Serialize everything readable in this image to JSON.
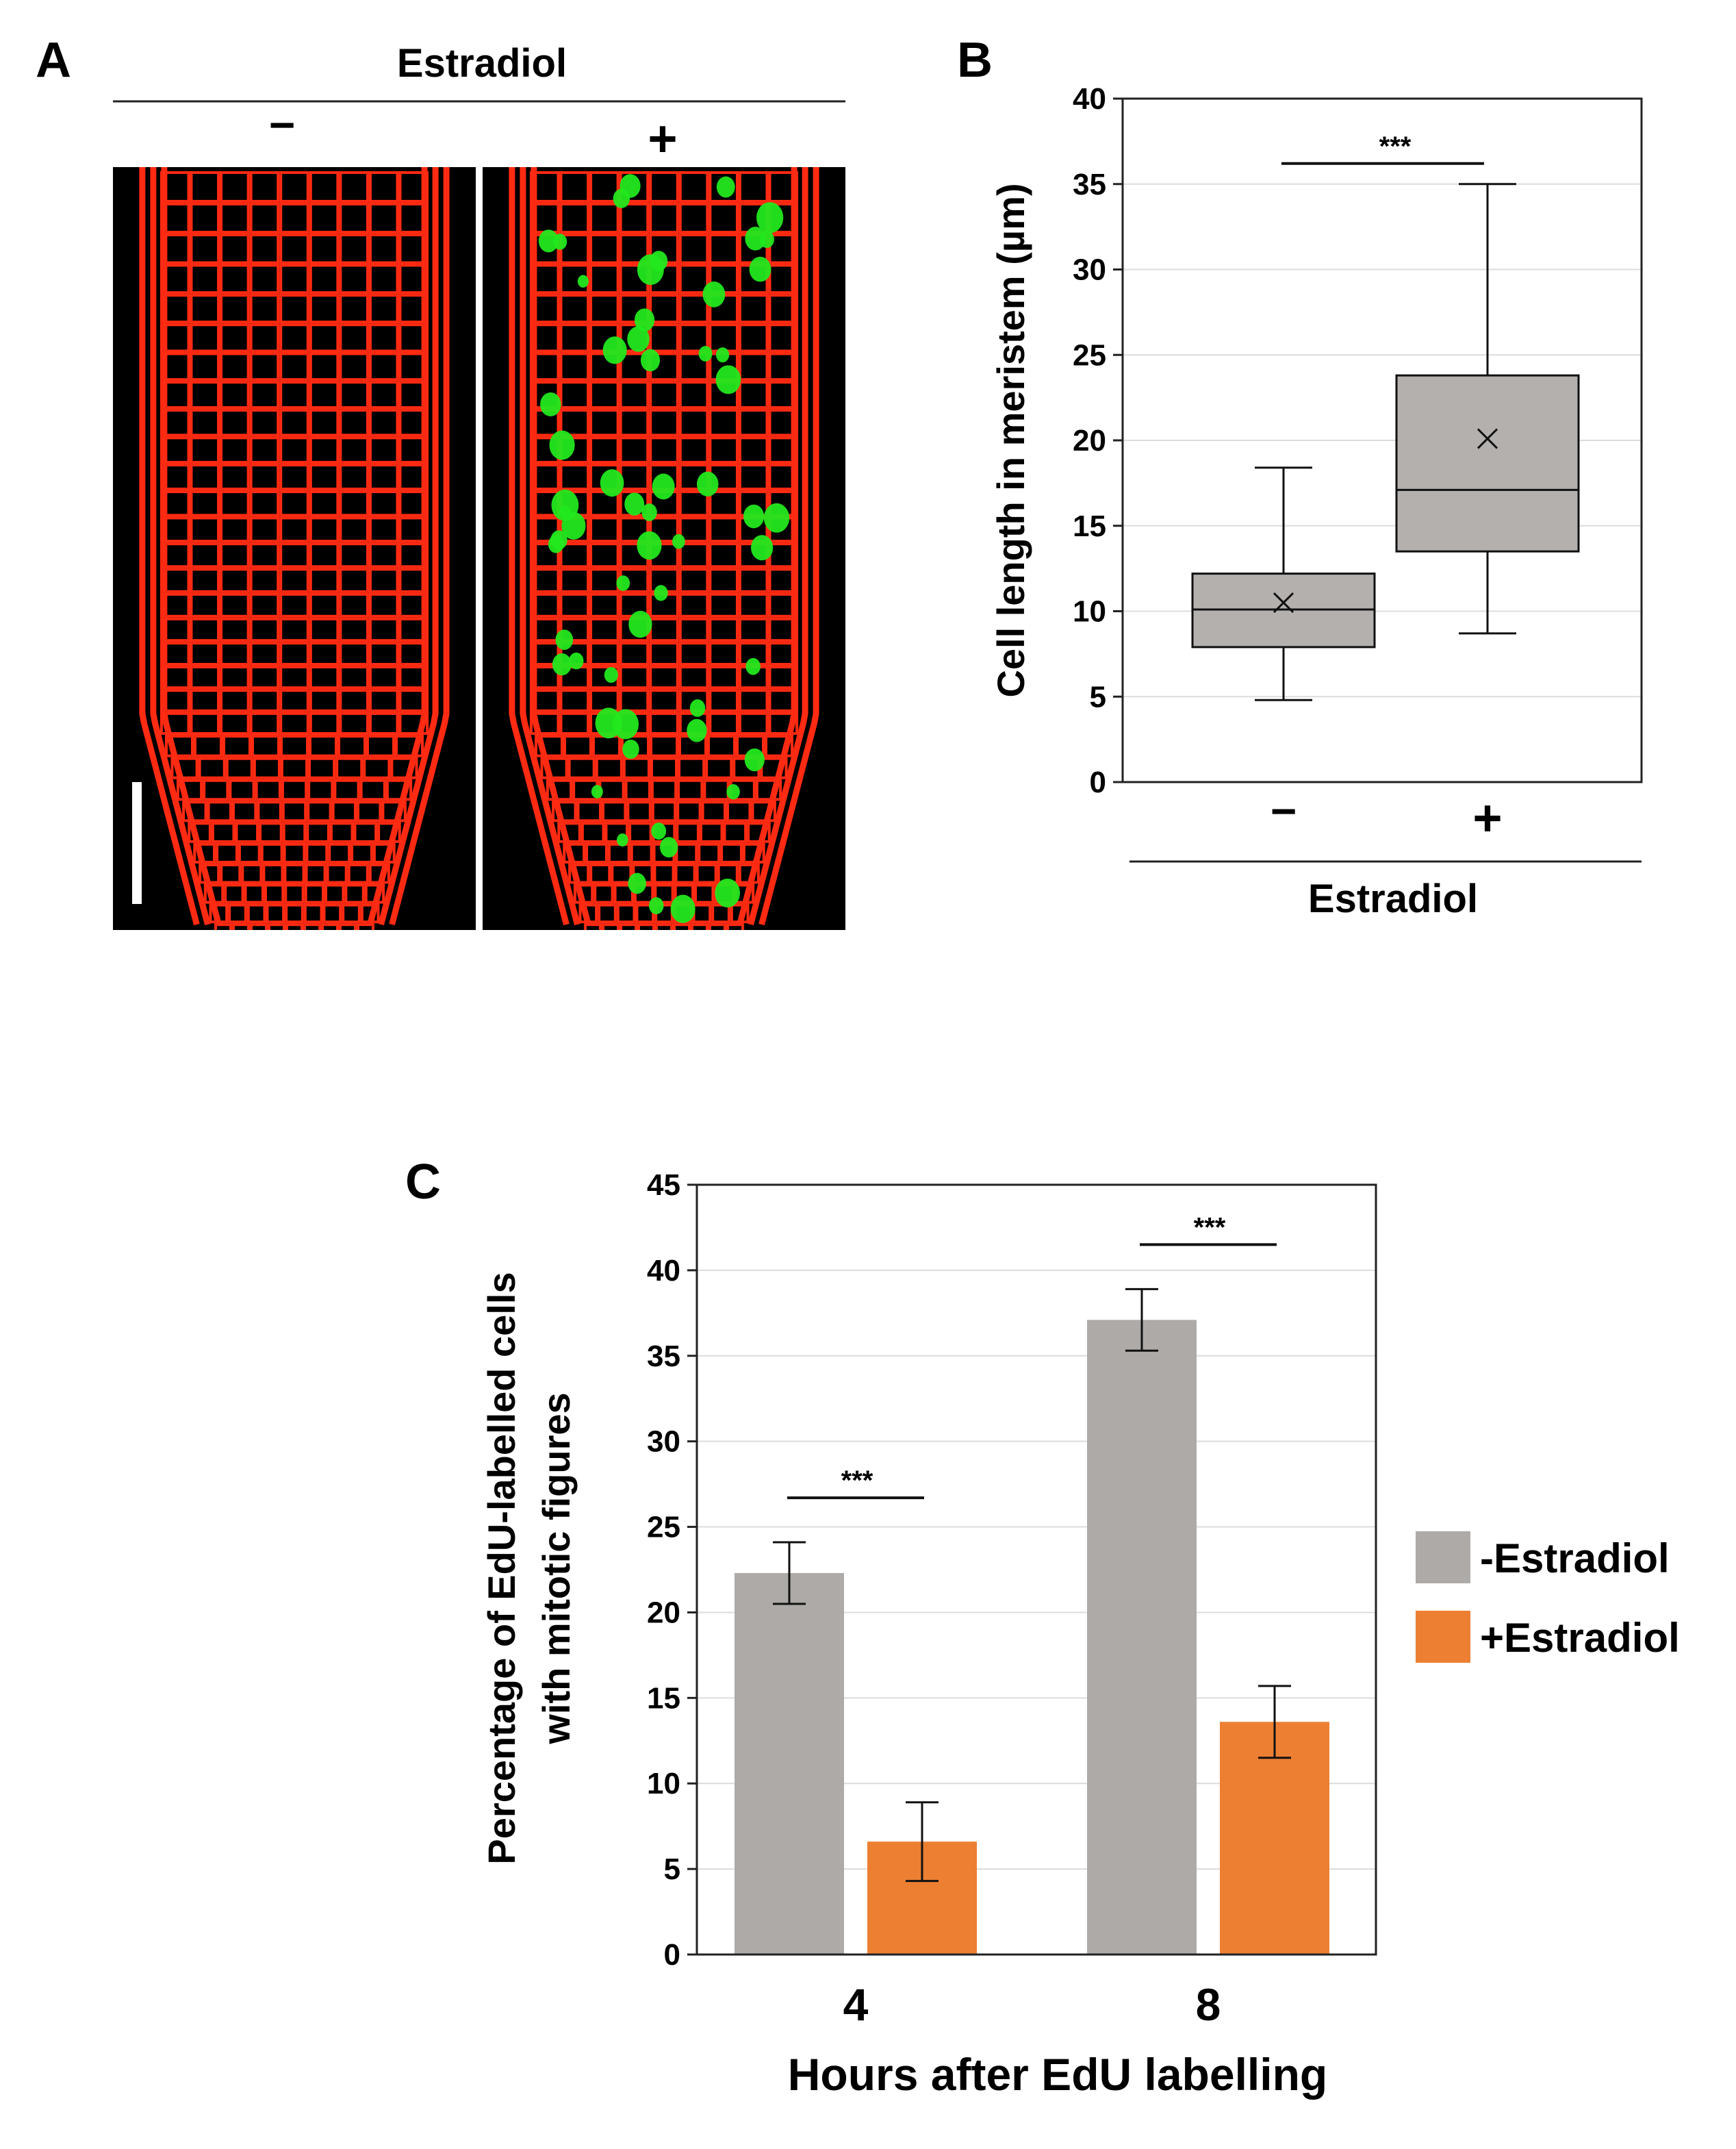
{
  "panel_labels": {
    "a": "A",
    "b": "B",
    "c": "C"
  },
  "panel_a": {
    "header": "Estradiol",
    "minus_label": "−",
    "plus_label": "+",
    "membrane_color": "#ff2a12",
    "nucleus_color": "#22e81e",
    "background_color": "#000000"
  },
  "chart_data": [
    {
      "panel": "B",
      "type": "box",
      "categories": [
        "−",
        "+"
      ],
      "boxes": [
        {
          "min": 4.8,
          "q1": 7.9,
          "median": 10.1,
          "q3": 12.2,
          "max": 18.4,
          "mean": 10.5
        },
        {
          "min": 8.7,
          "q1": 13.5,
          "median": 17.1,
          "q3": 23.8,
          "max": 35.0,
          "mean": 20.1
        }
      ],
      "ylabel": "Cell length in meristem (µm)",
      "xlabel": "Estradiol",
      "ylim": [
        0,
        40
      ],
      "yticks": [
        0,
        5,
        10,
        15,
        20,
        25,
        30,
        35,
        40
      ],
      "significance": "***",
      "grid": true,
      "box_color": "#b3b0ae"
    },
    {
      "panel": "C",
      "type": "bar",
      "categories": [
        "4",
        "8"
      ],
      "series": [
        {
          "name": "-Estradiol",
          "values": [
            22.3,
            37.1
          ],
          "errors": [
            1.8,
            1.8
          ],
          "color": "#adaaa8"
        },
        {
          "name": "+Estradiol",
          "values": [
            6.6,
            13.6
          ],
          "errors": [
            2.3,
            2.1
          ],
          "color": "#ed7f33"
        }
      ],
      "ylabel_line1": "Percentage of EdU-labelled cells",
      "ylabel_line2": "with mitotic figures",
      "xlabel": "Hours after EdU labelling",
      "ylim": [
        0,
        45
      ],
      "yticks": [
        0,
        5,
        10,
        15,
        20,
        25,
        30,
        35,
        40,
        45
      ],
      "significance": [
        "***",
        "***"
      ],
      "legend_position": "right",
      "grid": true
    }
  ]
}
